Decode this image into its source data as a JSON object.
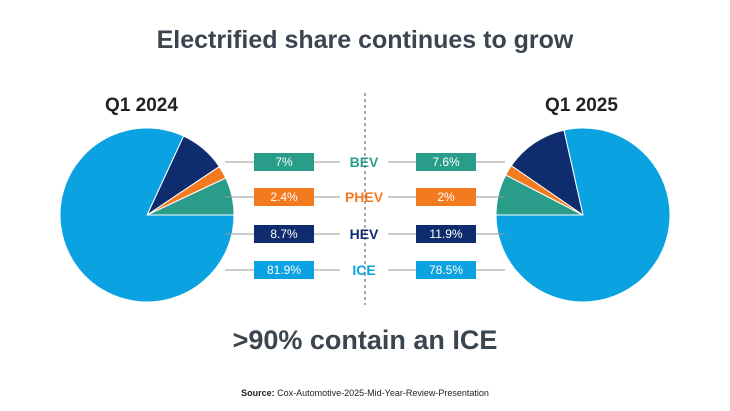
{
  "title": "Electrified share continues to grow",
  "callout": ">90% contain an ICE",
  "source": {
    "label": "Source:",
    "text": "Cox-Automotive-2025-Mid-Year-Review-Presentation"
  },
  "colors": {
    "BEV": "#2a9d8a",
    "PHEV": "#f47a20",
    "HEV": "#0f2d6e",
    "ICE": "#0aa2e0"
  },
  "chart_data": [
    {
      "type": "pie",
      "title": "Q1 2024",
      "labels": [
        "BEV",
        "PHEV",
        "HEV",
        "ICE"
      ],
      "values": [
        7,
        2.4,
        8.7,
        81.9
      ],
      "value_labels": [
        "7%",
        "2.4%",
        "8.7%",
        "81.9%"
      ]
    },
    {
      "type": "pie",
      "title": "Q1 2025",
      "labels": [
        "BEV",
        "PHEV",
        "HEV",
        "ICE"
      ],
      "values": [
        7.6,
        2,
        11.9,
        78.5
      ],
      "value_labels": [
        "7.6%",
        "2%",
        "11.9%",
        "78.5%"
      ]
    }
  ]
}
